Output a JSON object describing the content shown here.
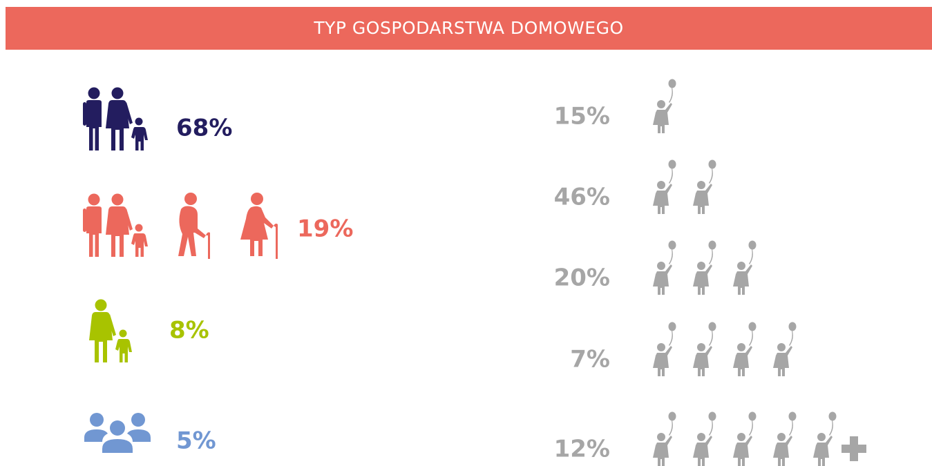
{
  "header": {
    "title": "TYP GOSPODARSTWA DOMOWEGO"
  },
  "household_types": [
    {
      "label": "68%",
      "color": "#231d5f"
    },
    {
      "label": "19%",
      "color": "#ec685c"
    },
    {
      "label": "8%",
      "color": "#a8c300"
    },
    {
      "label": "5%",
      "color": "#7197d2"
    }
  ],
  "children_counts": [
    {
      "label": "15%"
    },
    {
      "label": "46%"
    },
    {
      "label": "20%"
    },
    {
      "label": "7%"
    },
    {
      "label": "12%"
    }
  ],
  "children_color": "#a6a6a6"
}
